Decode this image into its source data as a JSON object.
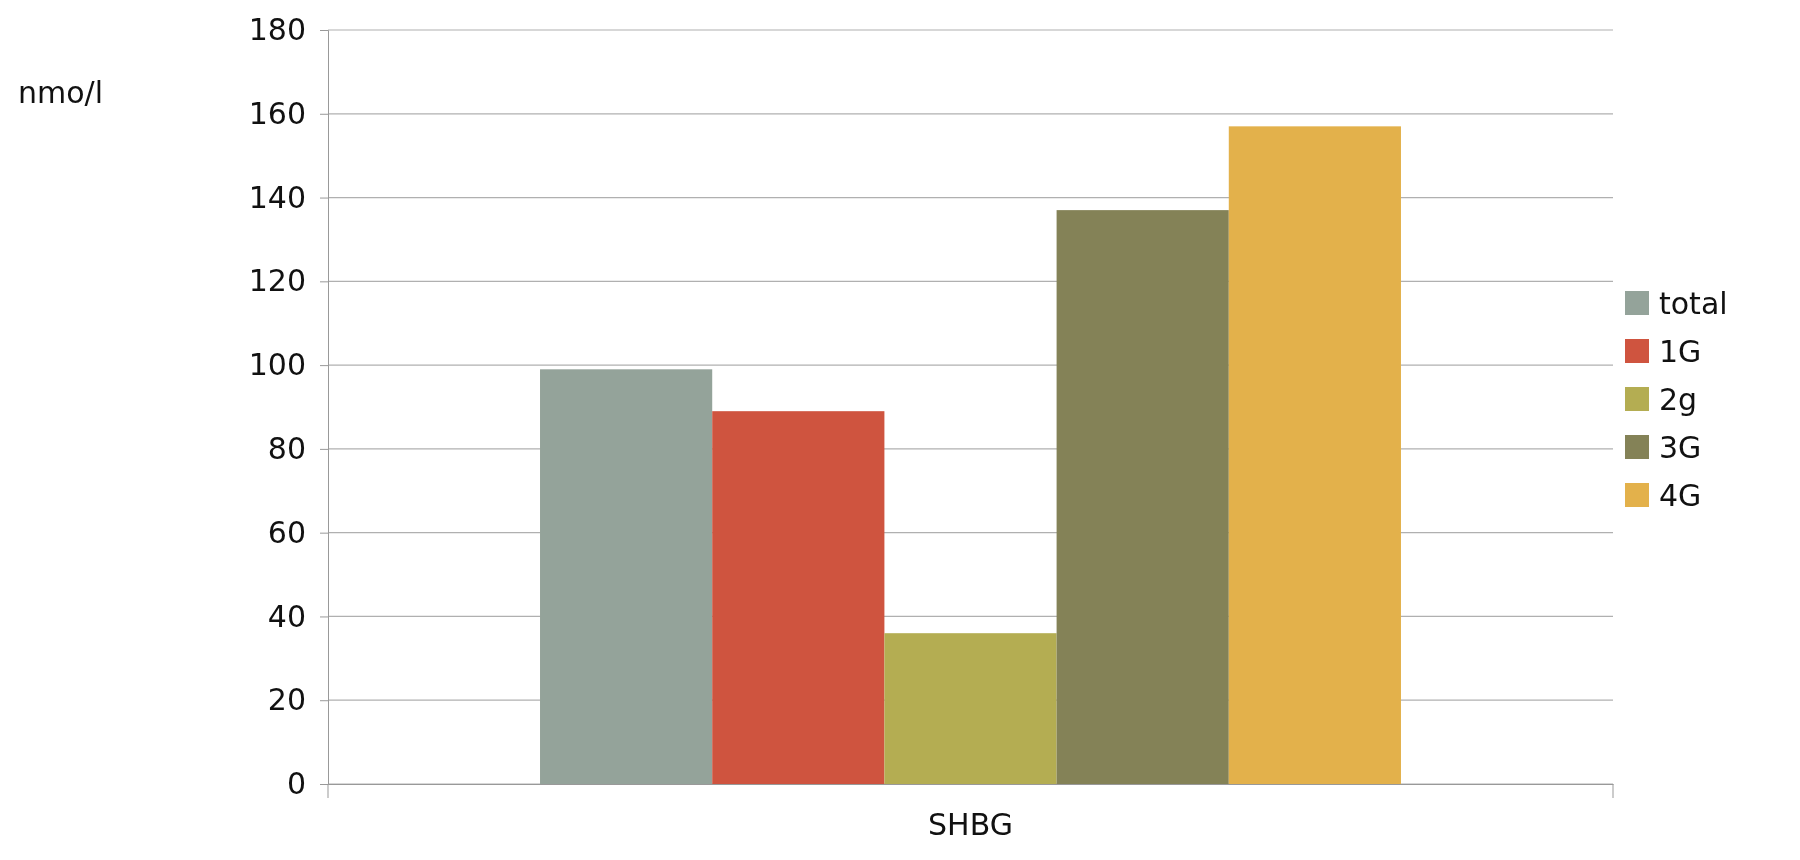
{
  "chart_data": {
    "type": "bar",
    "ylabel": "nmo/l",
    "categories": [
      "SHBG"
    ],
    "series": [
      {
        "name": "total",
        "color": "#94a39a",
        "values": [
          99
        ]
      },
      {
        "name": "1G",
        "color": "#cf543f",
        "values": [
          89
        ]
      },
      {
        "name": "2g",
        "color": "#b4ad52",
        "values": [
          36
        ]
      },
      {
        "name": "3G",
        "color": "#848257",
        "values": [
          137
        ]
      },
      {
        "name": "4G",
        "color": "#e3b14b",
        "values": [
          157
        ]
      }
    ],
    "ylim": [
      0,
      180
    ],
    "yticks": [
      0,
      20,
      40,
      60,
      80,
      100,
      120,
      140,
      160,
      180
    ],
    "grid": "y",
    "legend": "right"
  }
}
